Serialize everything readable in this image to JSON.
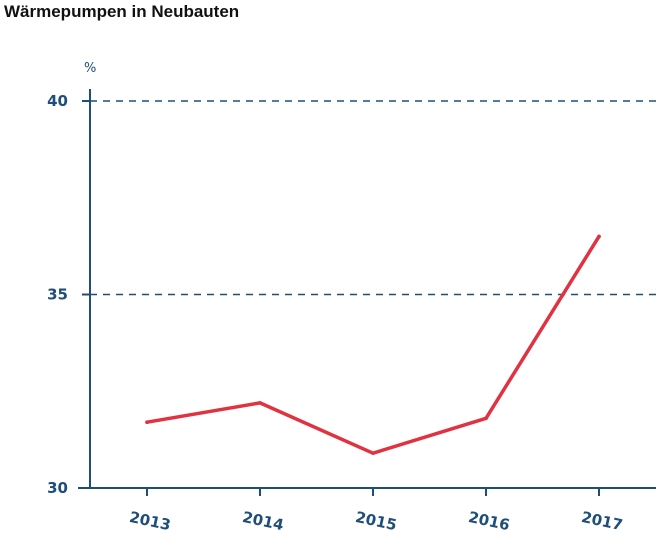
{
  "title": "Wärmepumpen in Neubauten",
  "chart_data": {
    "type": "line",
    "title": "Wärmepumpen in Neubauten",
    "xlabel": "",
    "ylabel": "%",
    "categories": [
      "2013",
      "2014",
      "2015",
      "2016",
      "2017"
    ],
    "series": [
      {
        "name": "",
        "values": [
          31.7,
          32.2,
          30.9,
          31.8,
          36.5
        ]
      }
    ],
    "ylim": [
      30,
      40
    ],
    "yticks": [
      "30",
      "35",
      "40"
    ],
    "grid": "dashed horizontal at 35 and 40",
    "legend": "none",
    "colors": {
      "axis": "#1f4e79",
      "line": "#e03240",
      "grid": "#1f4e79"
    }
  }
}
